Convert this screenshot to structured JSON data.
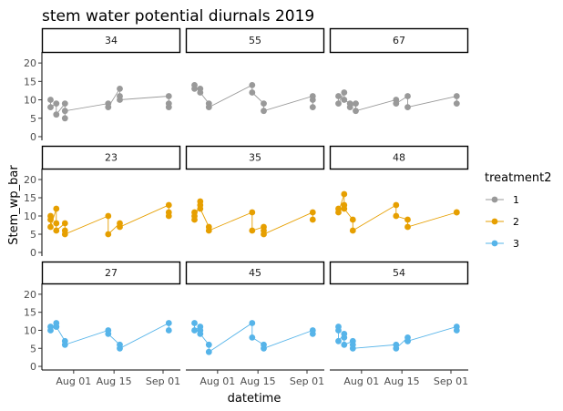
{
  "chart_data": {
    "type": "line",
    "title": "stem water potential diurnals 2019",
    "xlabel": "datetime",
    "ylabel": "Stem_wp_bar",
    "ylim": [
      -1,
      23
    ],
    "yticks": [
      0,
      5,
      10,
      15,
      20
    ],
    "xlim": [
      "2019-07-21",
      "2019-09-07"
    ],
    "xticks": [
      {
        "date": "2019-08-01",
        "label": "Aug 01"
      },
      {
        "date": "2019-08-15",
        "label": "Aug 15"
      },
      {
        "date": "2019-09-01",
        "label": "Sep 01"
      }
    ],
    "grid": false,
    "legend": {
      "title": "treatment2",
      "position": "right",
      "entries": [
        {
          "label": "1",
          "color": "#999999"
        },
        {
          "label": "2",
          "color": "#E69F00"
        },
        {
          "label": "3",
          "color": "#56B4E9"
        }
      ]
    },
    "facet_rows": [
      {
        "treatment": "1",
        "color": "#999999",
        "panels": [
          "34",
          "55",
          "67"
        ]
      },
      {
        "treatment": "2",
        "color": "#E69F00",
        "panels": [
          "23",
          "35",
          "48"
        ]
      },
      {
        "treatment": "3",
        "color": "#56B4E9",
        "panels": [
          "27",
          "45",
          "54"
        ]
      }
    ],
    "series": [
      {
        "panel": "34",
        "treatment": "1",
        "points": [
          {
            "x": "2019-07-24",
            "ys": [
              10,
              8
            ]
          },
          {
            "x": "2019-07-26",
            "ys": [
              9,
              6
            ]
          },
          {
            "x": "2019-07-29",
            "ys": [
              9,
              5,
              7
            ]
          },
          {
            "x": "2019-08-13",
            "ys": [
              9,
              8
            ]
          },
          {
            "x": "2019-08-17",
            "ys": [
              13,
              11,
              10
            ]
          },
          {
            "x": "2019-09-03",
            "ys": [
              11,
              9,
              8
            ]
          }
        ]
      },
      {
        "panel": "55",
        "treatment": "1",
        "points": [
          {
            "x": "2019-07-24",
            "ys": [
              14,
              13
            ]
          },
          {
            "x": "2019-07-26",
            "ys": [
              13,
              12
            ]
          },
          {
            "x": "2019-07-29",
            "ys": [
              9,
              8
            ]
          },
          {
            "x": "2019-08-13",
            "ys": [
              14,
              12
            ]
          },
          {
            "x": "2019-08-17",
            "ys": [
              9,
              7
            ]
          },
          {
            "x": "2019-09-03",
            "ys": [
              11,
              10,
              8
            ]
          }
        ]
      },
      {
        "panel": "67",
        "treatment": "1",
        "points": [
          {
            "x": "2019-07-24",
            "ys": [
              11,
              9
            ]
          },
          {
            "x": "2019-07-26",
            "ys": [
              12,
              10
            ]
          },
          {
            "x": "2019-07-28",
            "ys": [
              9,
              8
            ]
          },
          {
            "x": "2019-07-30",
            "ys": [
              9,
              7
            ]
          },
          {
            "x": "2019-08-13",
            "ys": [
              10,
              9
            ]
          },
          {
            "x": "2019-08-17",
            "ys": [
              11,
              8
            ]
          },
          {
            "x": "2019-09-03",
            "ys": [
              11,
              9
            ]
          }
        ]
      },
      {
        "panel": "23",
        "treatment": "2",
        "points": [
          {
            "x": "2019-07-24",
            "ys": [
              10,
              9,
              7
            ]
          },
          {
            "x": "2019-07-26",
            "ys": [
              12,
              8,
              6
            ]
          },
          {
            "x": "2019-07-29",
            "ys": [
              8,
              6,
              5
            ]
          },
          {
            "x": "2019-08-13",
            "ys": [
              10,
              5
            ]
          },
          {
            "x": "2019-08-17",
            "ys": [
              8,
              7
            ]
          },
          {
            "x": "2019-09-03",
            "ys": [
              13,
              11,
              10
            ]
          }
        ]
      },
      {
        "panel": "35",
        "treatment": "2",
        "points": [
          {
            "x": "2019-07-24",
            "ys": [
              11,
              10,
              9
            ]
          },
          {
            "x": "2019-07-26",
            "ys": [
              14,
              13,
              12
            ]
          },
          {
            "x": "2019-07-29",
            "ys": [
              7,
              6
            ]
          },
          {
            "x": "2019-08-13",
            "ys": [
              11,
              6
            ]
          },
          {
            "x": "2019-08-17",
            "ys": [
              7,
              6,
              5
            ]
          },
          {
            "x": "2019-09-03",
            "ys": [
              11,
              9
            ]
          }
        ]
      },
      {
        "panel": "48",
        "treatment": "2",
        "points": [
          {
            "x": "2019-07-24",
            "ys": [
              12,
              11
            ]
          },
          {
            "x": "2019-07-26",
            "ys": [
              16,
              13,
              12
            ]
          },
          {
            "x": "2019-07-29",
            "ys": [
              9,
              6
            ]
          },
          {
            "x": "2019-08-13",
            "ys": [
              13,
              10
            ]
          },
          {
            "x": "2019-08-17",
            "ys": [
              9,
              7
            ]
          },
          {
            "x": "2019-09-03",
            "ys": [
              11,
              11
            ]
          }
        ]
      },
      {
        "panel": "27",
        "treatment": "3",
        "points": [
          {
            "x": "2019-07-24",
            "ys": [
              11,
              10
            ]
          },
          {
            "x": "2019-07-26",
            "ys": [
              12,
              11,
              11
            ]
          },
          {
            "x": "2019-07-29",
            "ys": [
              7,
              6
            ]
          },
          {
            "x": "2019-08-13",
            "ys": [
              10,
              9
            ]
          },
          {
            "x": "2019-08-17",
            "ys": [
              6,
              5
            ]
          },
          {
            "x": "2019-09-03",
            "ys": [
              12,
              10
            ]
          }
        ]
      },
      {
        "panel": "45",
        "treatment": "3",
        "points": [
          {
            "x": "2019-07-24",
            "ys": [
              12,
              10
            ]
          },
          {
            "x": "2019-07-26",
            "ys": [
              11,
              10,
              9
            ]
          },
          {
            "x": "2019-07-29",
            "ys": [
              6,
              4
            ]
          },
          {
            "x": "2019-08-13",
            "ys": [
              12,
              8
            ]
          },
          {
            "x": "2019-08-17",
            "ys": [
              6,
              5
            ]
          },
          {
            "x": "2019-09-03",
            "ys": [
              10,
              9
            ]
          }
        ]
      },
      {
        "panel": "54",
        "treatment": "3",
        "points": [
          {
            "x": "2019-07-24",
            "ys": [
              11,
              10,
              7
            ]
          },
          {
            "x": "2019-07-26",
            "ys": [
              9,
              8,
              6
            ]
          },
          {
            "x": "2019-07-29",
            "ys": [
              7,
              6,
              5
            ]
          },
          {
            "x": "2019-08-13",
            "ys": [
              6,
              5
            ]
          },
          {
            "x": "2019-08-17",
            "ys": [
              8,
              7,
              7
            ]
          },
          {
            "x": "2019-09-03",
            "ys": [
              11,
              10
            ]
          }
        ]
      }
    ]
  }
}
